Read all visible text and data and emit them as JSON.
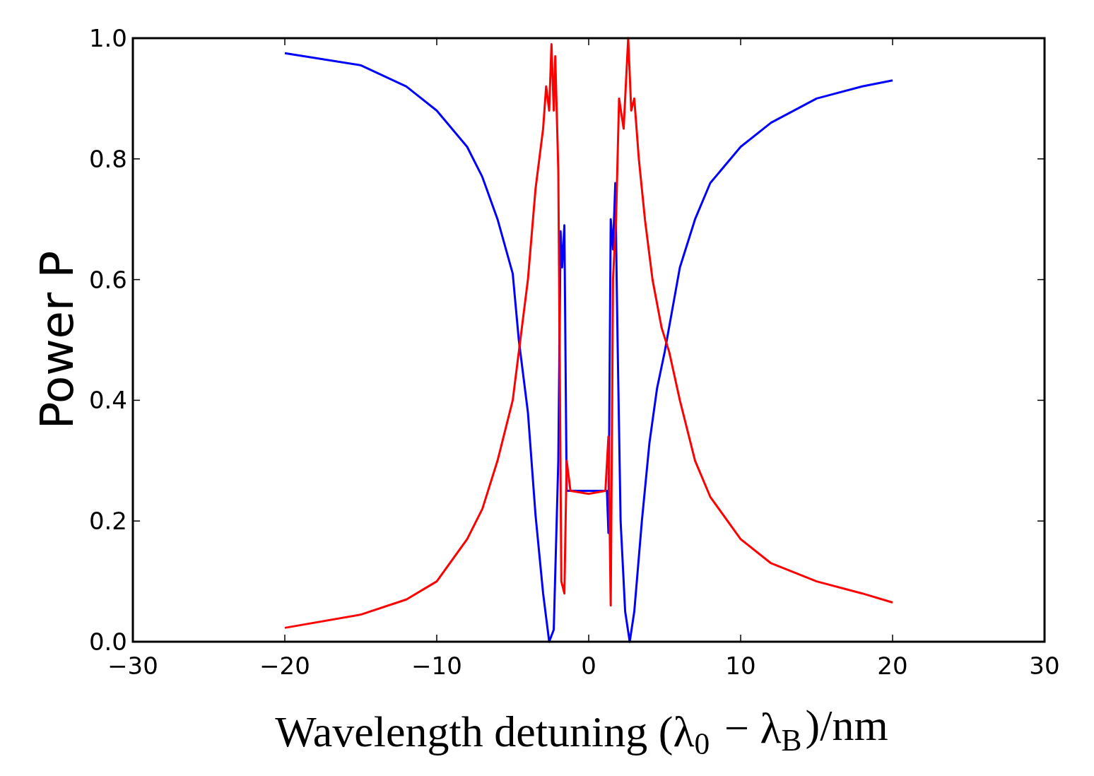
{
  "chart_data": {
    "type": "line",
    "xlabel": "Wavelength detuning (λ$_{0}$ − λ$_{B}$)/nm",
    "ylabel": "Power P",
    "xlim": [
      -30,
      30
    ],
    "ylim": [
      0,
      1
    ],
    "xticks": [
      {
        "value": -30,
        "label": "−30"
      },
      {
        "value": -20,
        "label": "−20"
      },
      {
        "value": -10,
        "label": "−10"
      },
      0,
      10,
      20,
      30
    ],
    "yticks": [
      {
        "value": 0,
        "label": "0.0"
      },
      0.2,
      0.4,
      0.6,
      0.8,
      {
        "value": 1,
        "label": "1.0"
      }
    ],
    "grid": false,
    "line_style": "solid",
    "marker": "none",
    "series": [
      {
        "color": "#0000ff",
        "x": [
          -20,
          -15,
          -12,
          -10,
          -8,
          -7,
          -6,
          -5,
          -4.6,
          -4.5,
          -4,
          -3.5,
          -3,
          -2.6,
          -2.3,
          -2,
          -1.85,
          -1.75,
          -1.6,
          -1.45,
          -1.3,
          0,
          1.2,
          1.3,
          1.45,
          1.6,
          1.75,
          1.9,
          2.1,
          2.4,
          2.7,
          3,
          3.5,
          4,
          4.5,
          5,
          5.5,
          6,
          7,
          8,
          10,
          12,
          15,
          18,
          20
        ],
        "values": [
          0.975,
          0.955,
          0.92,
          0.88,
          0.82,
          0.77,
          0.7,
          0.61,
          0.5,
          0.48,
          0.38,
          0.21,
          0.08,
          0,
          0.02,
          0.3,
          0.68,
          0.62,
          0.69,
          0.25,
          0.25,
          0.25,
          0.25,
          0.18,
          0.7,
          0.65,
          0.76,
          0.5,
          0.2,
          0.05,
          0,
          0.05,
          0.2,
          0.33,
          0.42,
          0.48,
          0.55,
          0.62,
          0.7,
          0.76,
          0.82,
          0.86,
          0.9,
          0.92,
          0.93
        ]
      },
      {
        "color": "#ff0000",
        "x": [
          -20,
          -15,
          -12,
          -10,
          -8,
          -7,
          -6,
          -5,
          -4.5,
          -4,
          -3.5,
          -3,
          -2.8,
          -2.6,
          -2.45,
          -2.3,
          -2.2,
          -2,
          -1.8,
          -1.6,
          -1.45,
          -1.2,
          0,
          1.1,
          1.3,
          1.45,
          1.6,
          1.8,
          2,
          2.3,
          2.6,
          2.8,
          3,
          3.3,
          3.7,
          4.2,
          4.8,
          5.3,
          6,
          7,
          8,
          10,
          12,
          15,
          18,
          20
        ],
        "values": [
          0.023,
          0.045,
          0.07,
          0.1,
          0.17,
          0.22,
          0.3,
          0.4,
          0.5,
          0.6,
          0.75,
          0.85,
          0.92,
          0.88,
          0.99,
          0.88,
          0.97,
          0.78,
          0.1,
          0.08,
          0.3,
          0.25,
          0.245,
          0.25,
          0.34,
          0.06,
          0.6,
          0.7,
          0.9,
          0.85,
          1,
          0.88,
          0.9,
          0.8,
          0.7,
          0.6,
          0.52,
          0.48,
          0.4,
          0.3,
          0.24,
          0.17,
          0.13,
          0.1,
          0.08,
          0.065
        ]
      }
    ]
  }
}
